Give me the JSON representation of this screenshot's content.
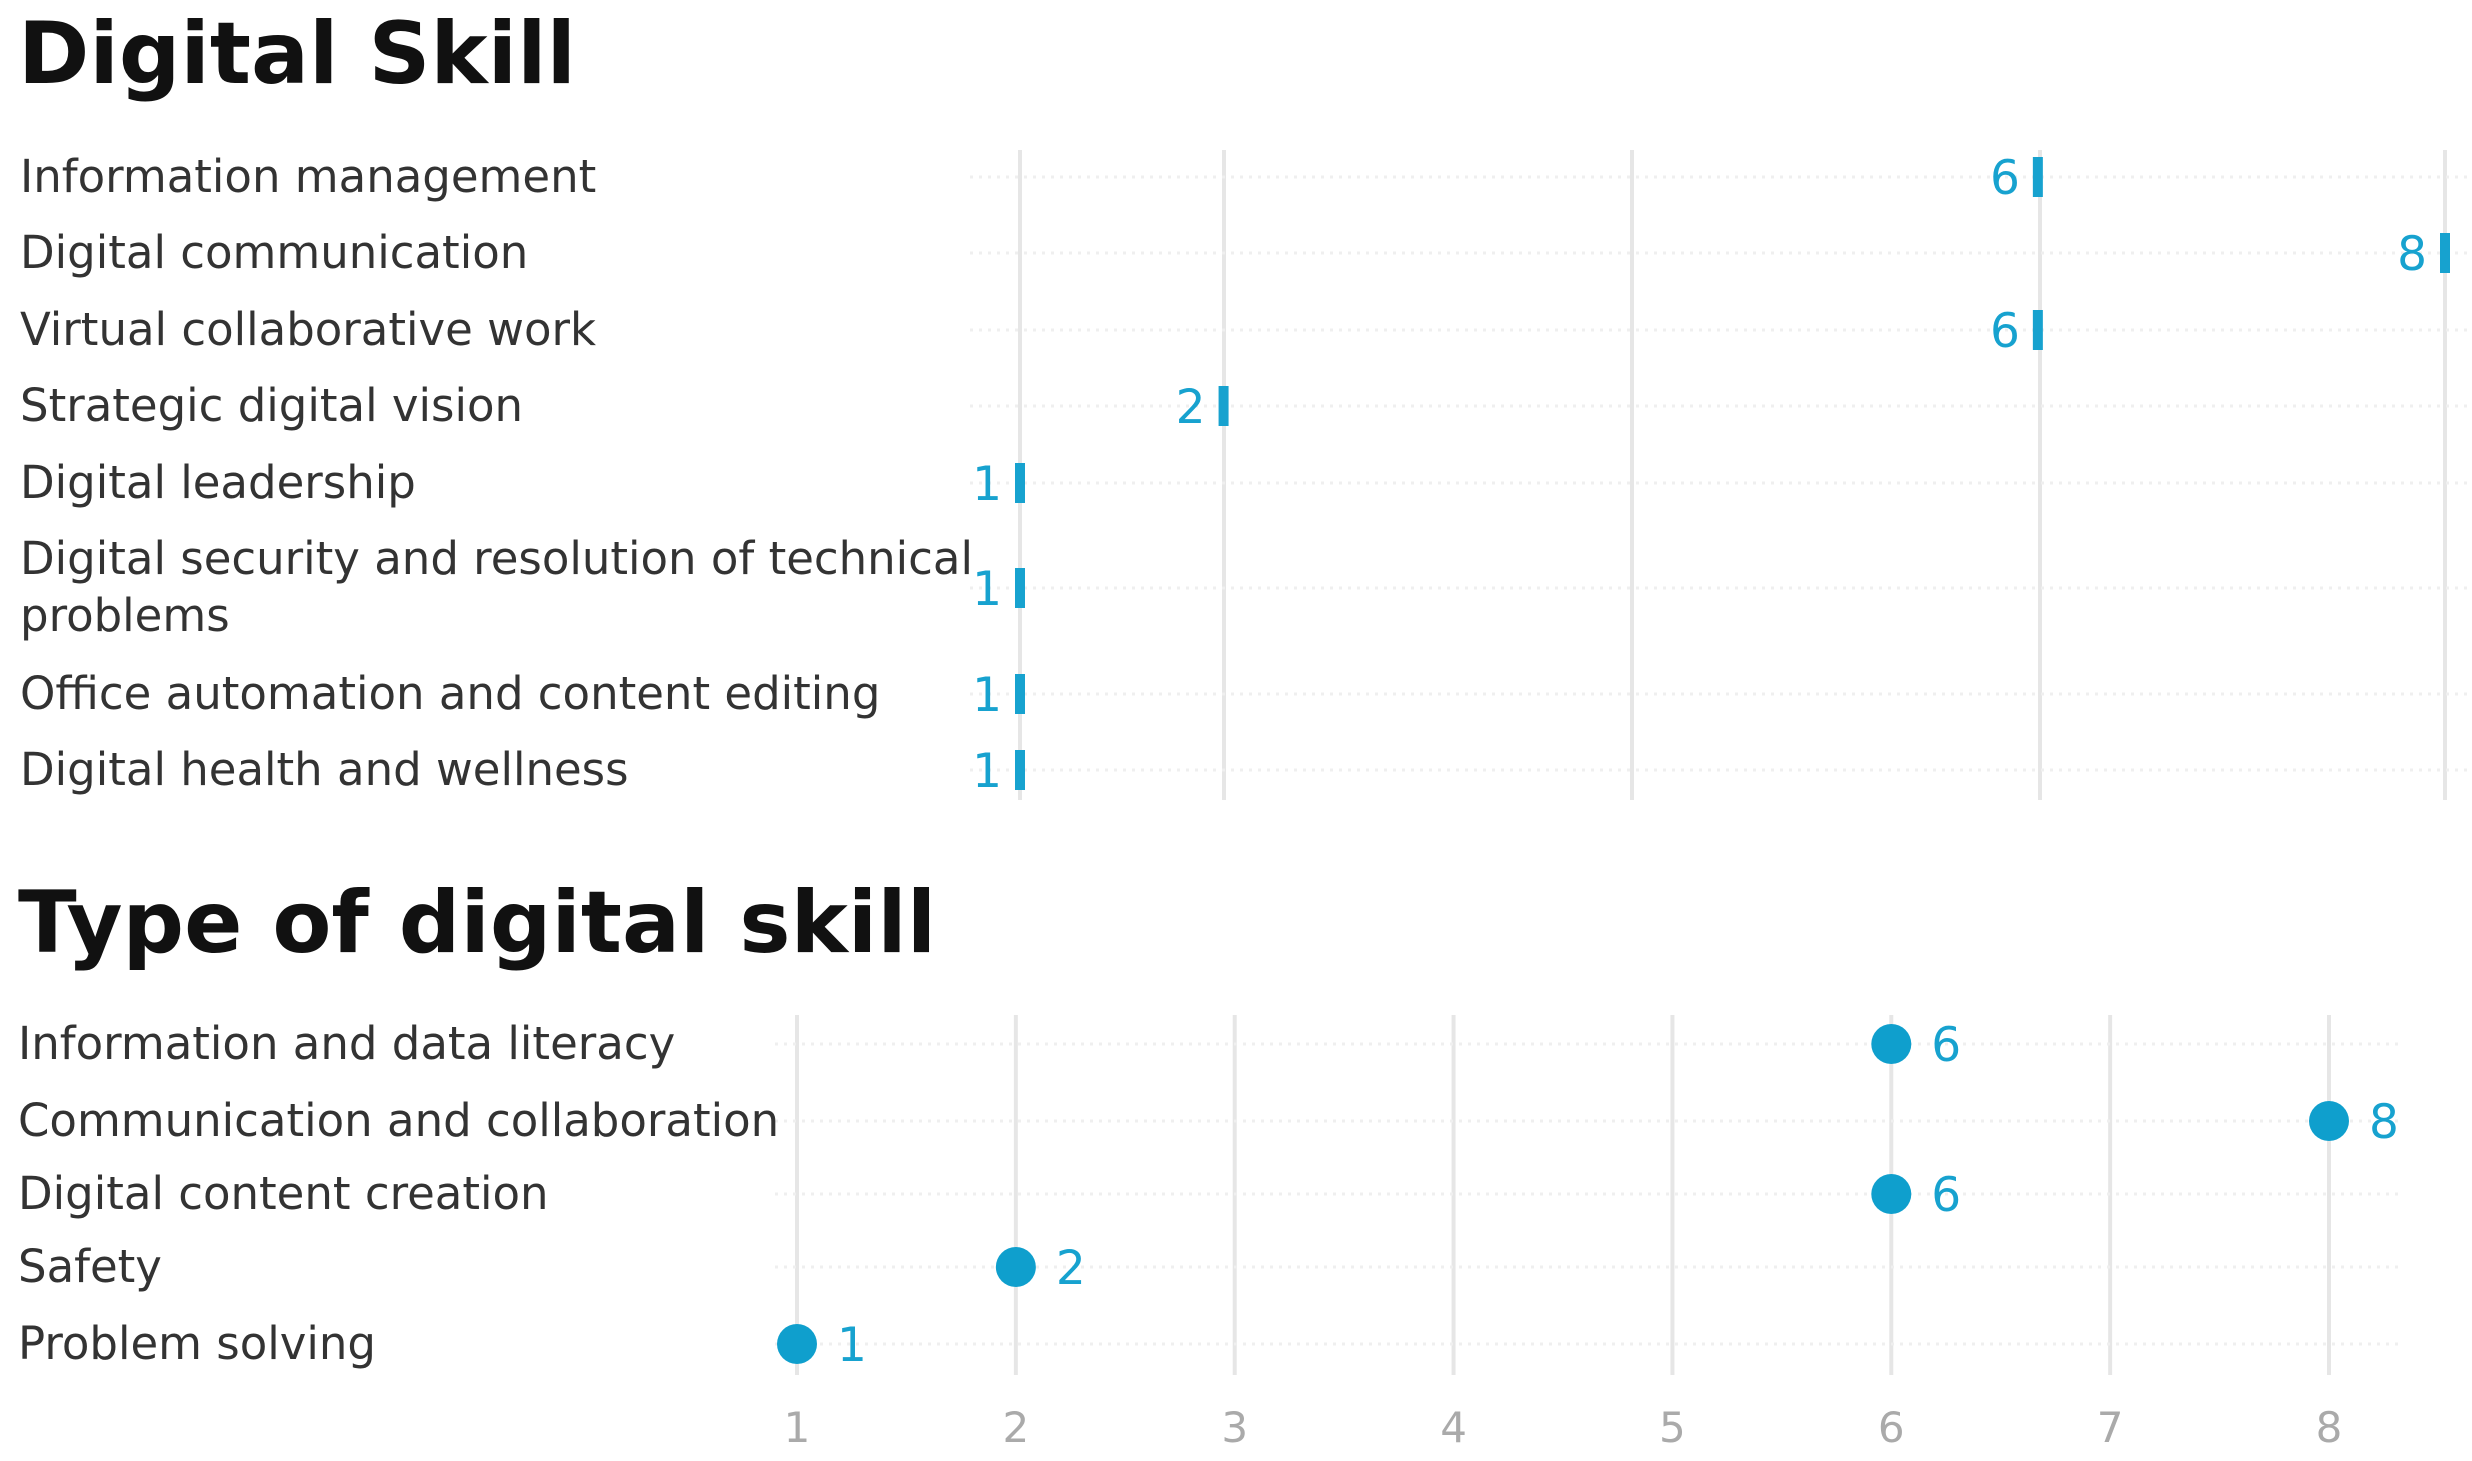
{
  "chart_data": [
    {
      "type": "bar",
      "title": "Digital Skill",
      "xlim": [
        1,
        8
      ],
      "grid": true,
      "categories": [
        [
          "Information management"
        ],
        [
          "Digital communication"
        ],
        [
          "Virtual collaborative work"
        ],
        [
          "Strategic digital vision"
        ],
        [
          "Digital leadership"
        ],
        [
          "Digital security and resolution of technical",
          "problems"
        ],
        [
          "Office automation and content editing"
        ],
        [
          "Digital health and wellness"
        ]
      ],
      "values": [
        6,
        8,
        6,
        2,
        1,
        1,
        1,
        1
      ],
      "color": "#17a2cf"
    },
    {
      "type": "scatter",
      "title": "Type of digital skill",
      "xlim": [
        1,
        8
      ],
      "x_ticks": [
        1,
        2,
        3,
        4,
        5,
        6,
        7,
        8
      ],
      "grid": true,
      "categories": [
        "Information and data literacy",
        "Communication and collaboration",
        "Digital content creation",
        "Safety",
        "Problem solving"
      ],
      "values": [
        6,
        8,
        6,
        2,
        1
      ],
      "color": "#0f9fcd"
    }
  ]
}
